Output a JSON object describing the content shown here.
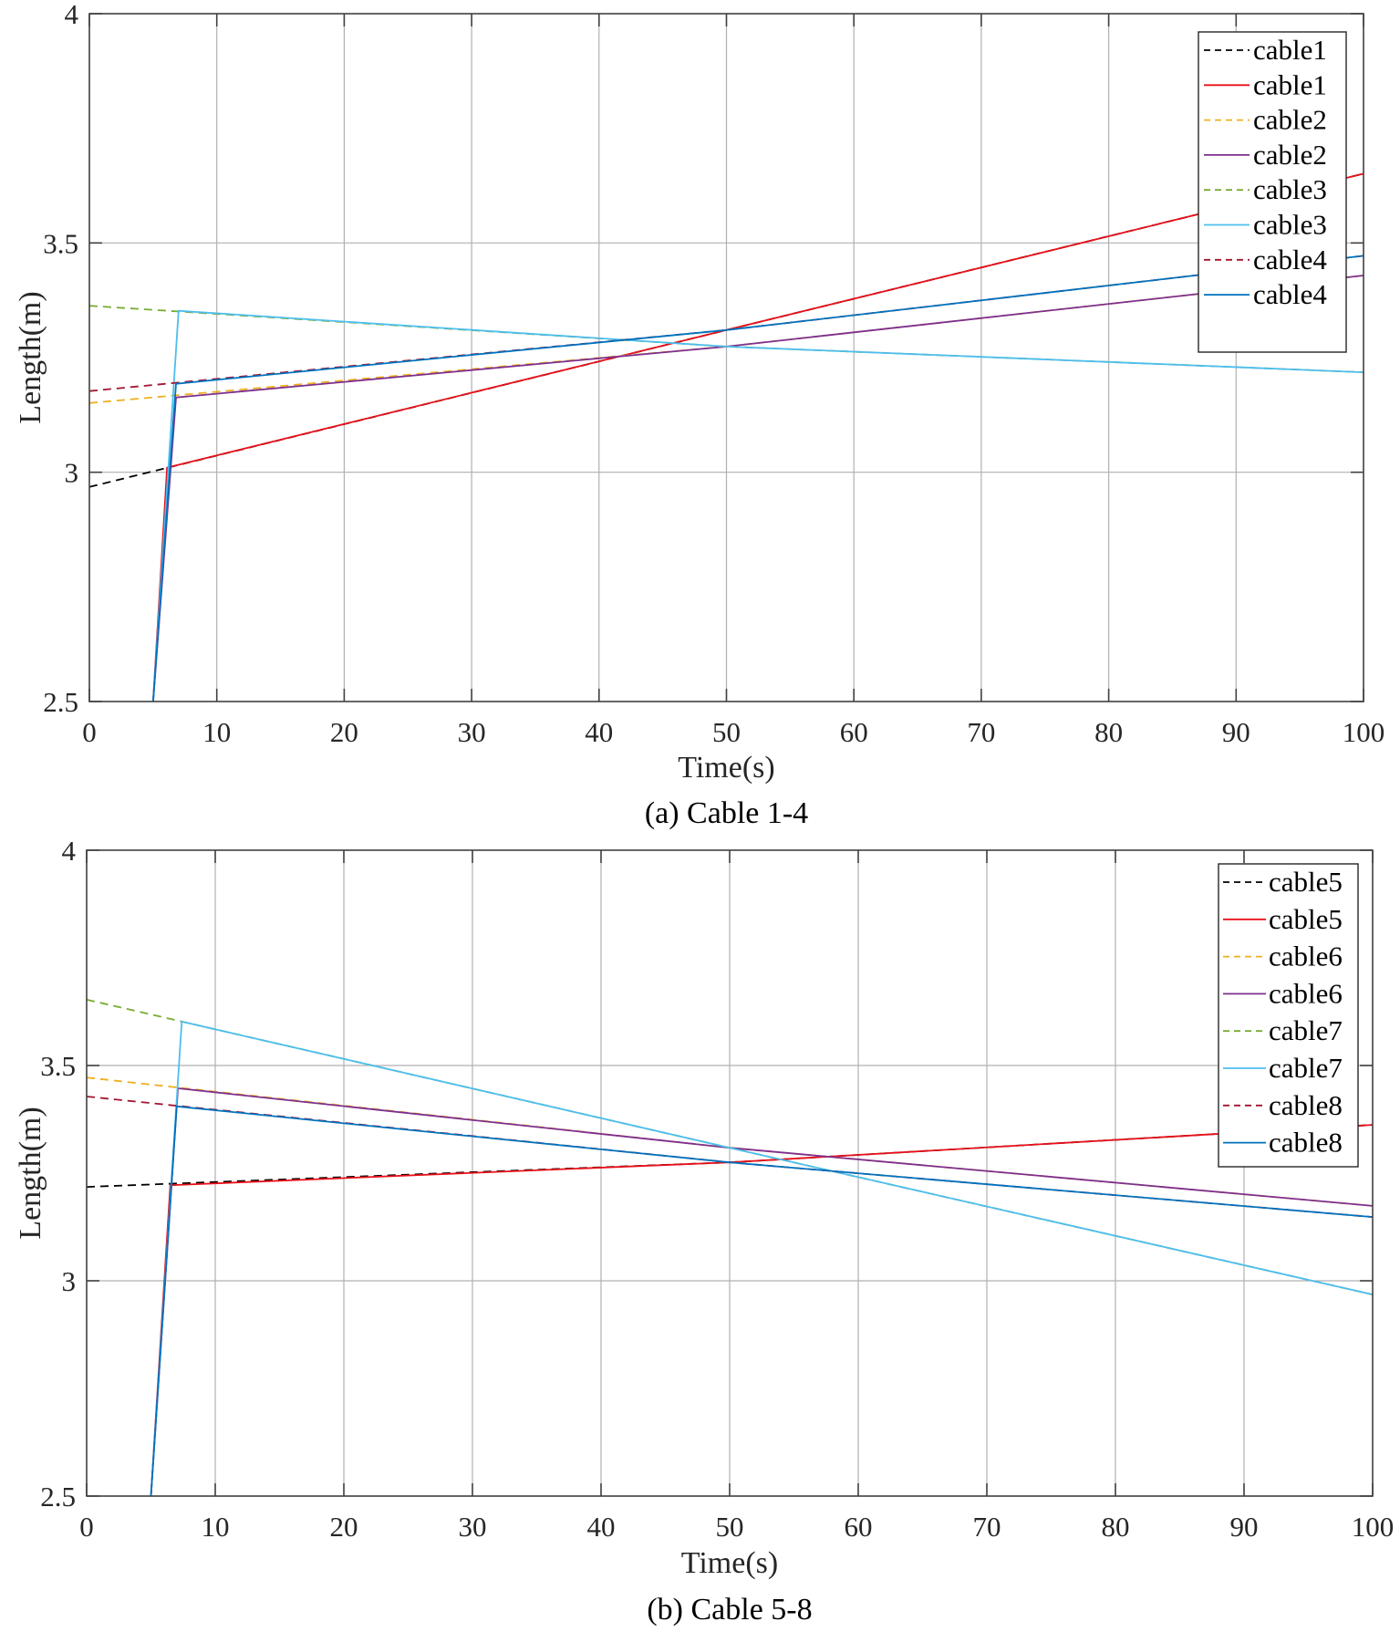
{
  "chart_data": [
    {
      "id": "a",
      "type": "line",
      "caption": "(a) Cable 1-4",
      "xlabel": "Time(s)",
      "ylabel": "Length(m)",
      "xlim": [
        0,
        100
      ],
      "ylim": [
        2.5,
        4
      ],
      "xticks": [
        0,
        10,
        20,
        30,
        40,
        50,
        60,
        70,
        80,
        90,
        100
      ],
      "xtick_labels": [
        "0",
        "10",
        "20",
        "30",
        "40",
        "50",
        "60",
        "70",
        "80",
        "90",
        "100"
      ],
      "yticks": [
        2.5,
        3,
        3.5,
        4
      ],
      "ytick_labels": [
        "2.5",
        "3",
        "3.5",
        "4"
      ],
      "grid": true,
      "legend_position": "top-right",
      "series": [
        {
          "name": "cable1",
          "style": "dashed",
          "color": "#000000",
          "x": [
            0,
            50,
            100
          ],
          "y": [
            2.968,
            3.31,
            3.651
          ]
        },
        {
          "name": "cable1",
          "style": "solid",
          "color": "#e8101a",
          "x": [
            5.0,
            6.1,
            50,
            100
          ],
          "y": [
            2.5,
            3.01,
            3.31,
            3.651
          ]
        },
        {
          "name": "cable2",
          "style": "dashed",
          "color": "#edb120",
          "x": [
            0,
            50,
            100
          ],
          "y": [
            3.151,
            3.274,
            3.429
          ]
        },
        {
          "name": "cable2",
          "style": "solid",
          "color": "#7e2f8e",
          "x": [
            5.0,
            6.8,
            50,
            100
          ],
          "y": [
            2.5,
            3.163,
            3.274,
            3.429
          ]
        },
        {
          "name": "cable3",
          "style": "dashed",
          "color": "#77ac30",
          "x": [
            0,
            50,
            100
          ],
          "y": [
            3.363,
            3.274,
            3.218
          ]
        },
        {
          "name": "cable3",
          "style": "solid",
          "color": "#4dbeee",
          "x": [
            5.0,
            7.0,
            50,
            100
          ],
          "y": [
            2.5,
            3.352,
            3.274,
            3.218
          ]
        },
        {
          "name": "cable4",
          "style": "dashed",
          "color": "#a2142f",
          "x": [
            0,
            50,
            100
          ],
          "y": [
            3.177,
            3.31,
            3.472
          ]
        },
        {
          "name": "cable4",
          "style": "solid",
          "color": "#0072bd",
          "x": [
            5.0,
            6.8,
            50,
            100
          ],
          "y": [
            2.5,
            3.193,
            3.31,
            3.472
          ]
        }
      ]
    },
    {
      "id": "b",
      "type": "line",
      "caption": "(b) Cable 5-8",
      "xlabel": "Time(s)",
      "ylabel": "Length(m)",
      "xlim": [
        0,
        100
      ],
      "ylim": [
        2.5,
        4
      ],
      "xticks": [
        0,
        10,
        20,
        30,
        40,
        50,
        60,
        70,
        80,
        90,
        100
      ],
      "xtick_labels": [
        "0",
        "10",
        "20",
        "30",
        "40",
        "50",
        "60",
        "70",
        "80",
        "90",
        "100"
      ],
      "yticks": [
        2.5,
        3,
        3.5,
        4
      ],
      "ytick_labels": [
        "2.5",
        "3",
        "3.5",
        "4"
      ],
      "grid": true,
      "legend_position": "top-right",
      "series": [
        {
          "name": "cable5",
          "style": "dashed",
          "color": "#000000",
          "x": [
            0,
            50,
            100
          ],
          "y": [
            3.218,
            3.275,
            3.362
          ]
        },
        {
          "name": "cable5",
          "style": "solid",
          "color": "#e8101a",
          "x": [
            5.0,
            6.5,
            50,
            100
          ],
          "y": [
            2.5,
            3.222,
            3.275,
            3.362
          ]
        },
        {
          "name": "cable6",
          "style": "dashed",
          "color": "#edb120",
          "x": [
            0,
            50,
            100
          ],
          "y": [
            3.472,
            3.309,
            3.174
          ]
        },
        {
          "name": "cable6",
          "style": "solid",
          "color": "#7e2f8e",
          "x": [
            5.0,
            7.1,
            50,
            100
          ],
          "y": [
            2.5,
            3.447,
            3.309,
            3.174
          ]
        },
        {
          "name": "cable7",
          "style": "dashed",
          "color": "#77ac30",
          "x": [
            0,
            50,
            100
          ],
          "y": [
            3.653,
            3.309,
            2.968
          ]
        },
        {
          "name": "cable7",
          "style": "solid",
          "color": "#4dbeee",
          "x": [
            5.0,
            7.4,
            50,
            100
          ],
          "y": [
            2.5,
            3.602,
            3.309,
            2.968
          ]
        },
        {
          "name": "cable8",
          "style": "dashed",
          "color": "#a2142f",
          "x": [
            0,
            50,
            100
          ],
          "y": [
            3.428,
            3.275,
            3.148
          ]
        },
        {
          "name": "cable8",
          "style": "solid",
          "color": "#0072bd",
          "x": [
            5.0,
            7.0,
            50,
            100
          ],
          "y": [
            2.5,
            3.405,
            3.275,
            3.148
          ]
        }
      ]
    }
  ]
}
